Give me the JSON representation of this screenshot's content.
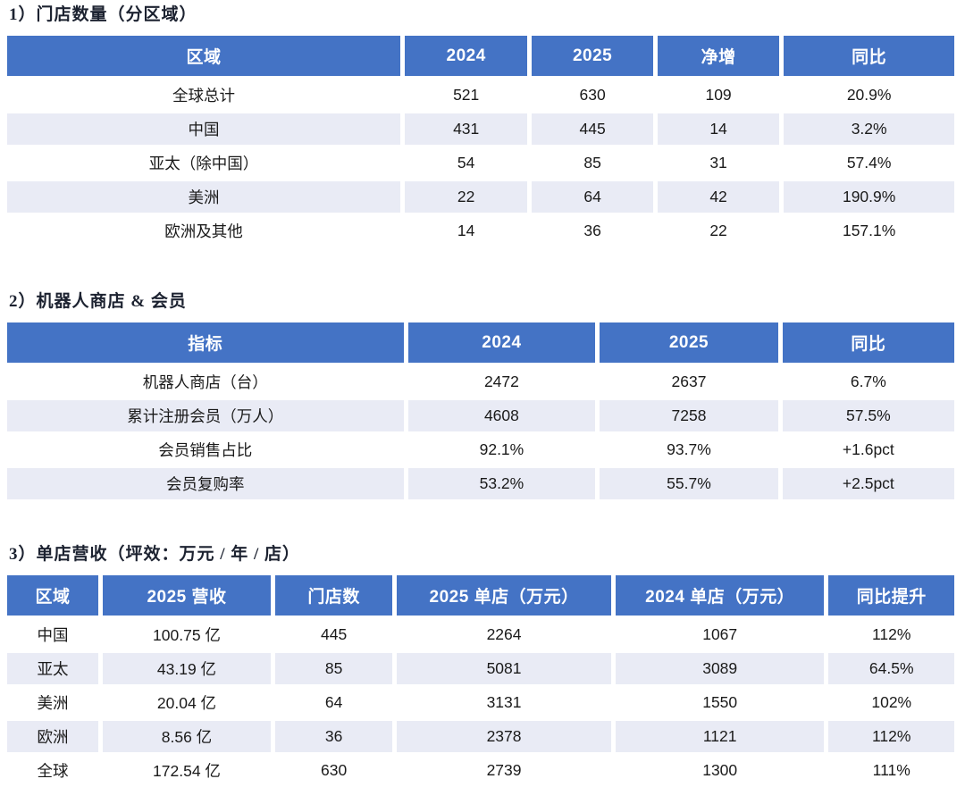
{
  "theme": {
    "header_bg": "#4473C5",
    "header_text": "#ffffff",
    "alt_row_bg": "#E9EBF5",
    "body_text": "#1a1a1a",
    "title_text": "#1c2230"
  },
  "sections": [
    {
      "title": "1）门店数量（分区域）",
      "columns": [
        "区域",
        "2024",
        "2025",
        "净增",
        "同比"
      ],
      "rows": [
        [
          "全球总计",
          "521",
          "630",
          "109",
          "20.9%"
        ],
        [
          "中国",
          "431",
          "445",
          "14",
          "3.2%"
        ],
        [
          "亚太（除中国）",
          "54",
          "85",
          "31",
          "57.4%"
        ],
        [
          "美洲",
          "22",
          "64",
          "42",
          "190.9%"
        ],
        [
          "欧洲及其他",
          "14",
          "36",
          "22",
          "157.1%"
        ]
      ]
    },
    {
      "title": "2）机器人商店 & 会员",
      "columns": [
        "指标",
        "2024",
        "2025",
        "同比"
      ],
      "rows": [
        [
          "机器人商店（台）",
          "2472",
          "2637",
          "6.7%"
        ],
        [
          "累计注册会员（万人）",
          "4608",
          "7258",
          "57.5%"
        ],
        [
          "会员销售占比",
          "92.1%",
          "93.7%",
          "+1.6pct"
        ],
        [
          "会员复购率",
          "53.2%",
          "55.7%",
          "+2.5pct"
        ]
      ]
    },
    {
      "title": "3）单店营收（坪效：万元 / 年 / 店）",
      "columns": [
        "区域",
        "2025 营收",
        "门店数",
        "2025 单店（万元）",
        "2024 单店（万元）",
        "同比提升"
      ],
      "rows": [
        [
          "中国",
          "100.75 亿",
          "445",
          "2264",
          "1067",
          "112%"
        ],
        [
          "亚太",
          "43.19 亿",
          "85",
          "5081",
          "3089",
          "64.5%"
        ],
        [
          "美洲",
          "20.04 亿",
          "64",
          "3131",
          "1550",
          "102%"
        ],
        [
          "欧洲",
          "8.56 亿",
          "36",
          "2378",
          "1121",
          "112%"
        ],
        [
          "全球",
          "172.54 亿",
          "630",
          "2739",
          "1300",
          "111%"
        ]
      ]
    }
  ]
}
